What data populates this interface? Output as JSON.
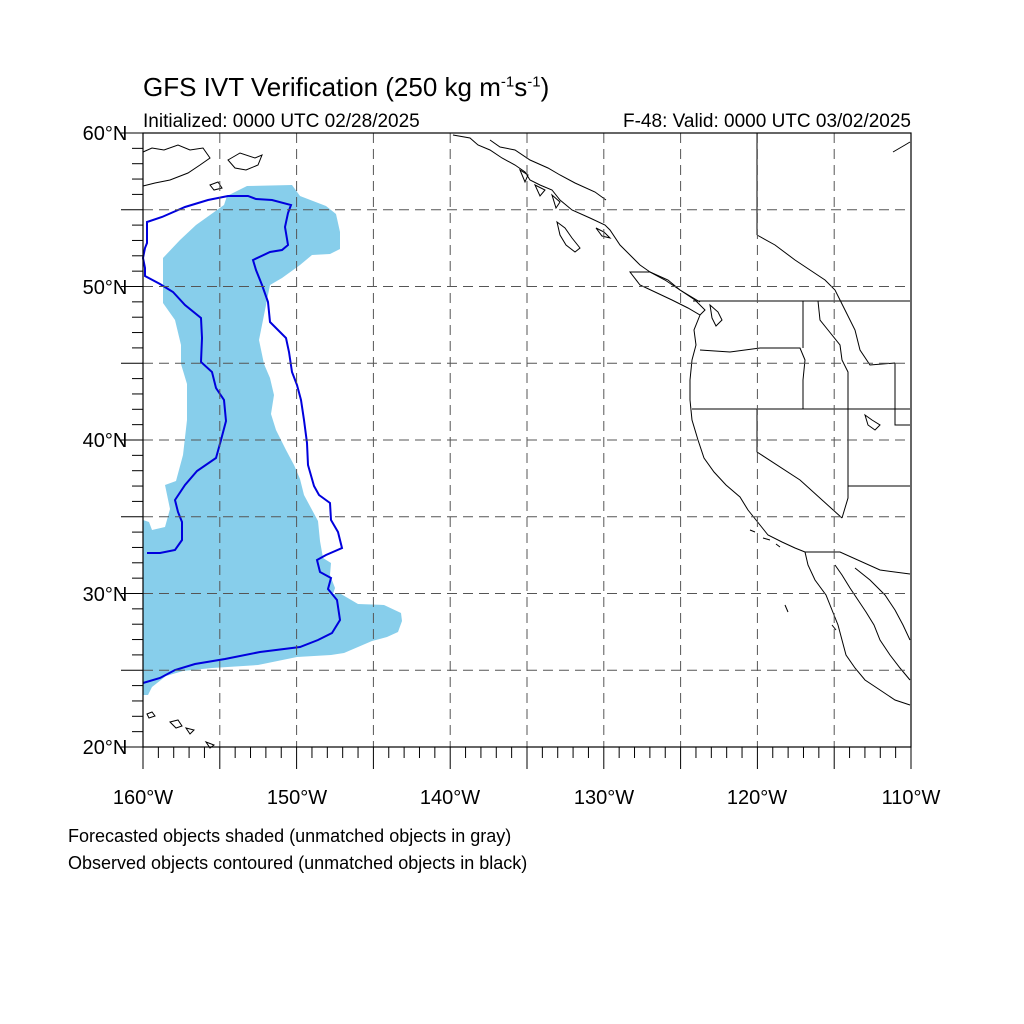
{
  "title": {
    "main": "GFS IVT Verification (250 kg m",
    "exp1": "-1",
    "s_text": "s",
    "exp2": "-1",
    "close": ")"
  },
  "subtitle_left": "Initialized: 0000 UTC 02/28/2025",
  "subtitle_right": "F-48: Valid: 0000 UTC 03/02/2025",
  "notes": [
    "Forecasted objects shaded (unmatched objects in gray)",
    "Observed objects contoured (unmatched objects in black)"
  ],
  "map_data": {
    "lon_range": [
      -160,
      -110
    ],
    "lat_range": [
      20,
      60
    ],
    "lat_labels": [
      "20°N",
      "30°N",
      "40°N",
      "50°N",
      "60°N"
    ],
    "lon_labels": [
      "160°W",
      "150°W",
      "140°W",
      "130°W",
      "120°W",
      "110°W"
    ],
    "colors": {
      "forecast_fill": "#87ceeb",
      "observed_contour": "#0000dd",
      "grid": "#555555",
      "coast": "#000000"
    }
  }
}
